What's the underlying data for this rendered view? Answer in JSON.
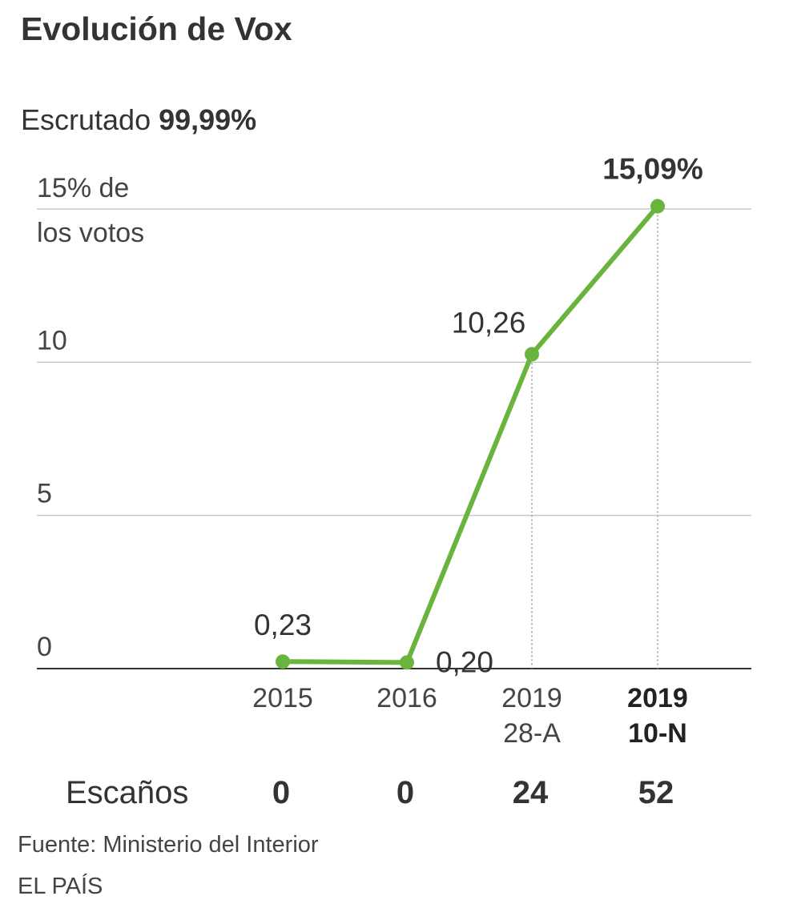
{
  "title": "Evolución de Vox",
  "subtitle": {
    "prefix": "Escrutado ",
    "value": "99,99%"
  },
  "chart_data": {
    "type": "line",
    "categories": [
      "2015",
      "2016",
      "2019 28-A",
      "2019 10-N"
    ],
    "x_labels": [
      {
        "line1": "2015",
        "line2": "",
        "bold": false
      },
      {
        "line1": "2016",
        "line2": "",
        "bold": false
      },
      {
        "line1": "2019",
        "line2": "28-A",
        "bold": false
      },
      {
        "line1": "2019",
        "line2": "10-N",
        "bold": true
      }
    ],
    "values": [
      0.23,
      0.2,
      10.26,
      15.09
    ],
    "data_labels": [
      "0,23",
      "0,20",
      "10,26",
      "15,09%"
    ],
    "ylim": [
      0,
      15
    ],
    "yticks": [
      {
        "value": 15,
        "lines": [
          "15% de",
          "los votos"
        ]
      },
      {
        "value": 10,
        "lines": [
          "10"
        ]
      },
      {
        "value": 5,
        "lines": [
          "5"
        ]
      },
      {
        "value": 0,
        "lines": [
          "0"
        ]
      }
    ],
    "grid": true,
    "line_color": "#6ab43e",
    "seats": {
      "label": "Escaños",
      "values": [
        "0",
        "0",
        "24",
        "52"
      ]
    }
  },
  "footer": {
    "source": "Fuente: Ministerio del Interior",
    "credit": "EL PAÍS"
  }
}
